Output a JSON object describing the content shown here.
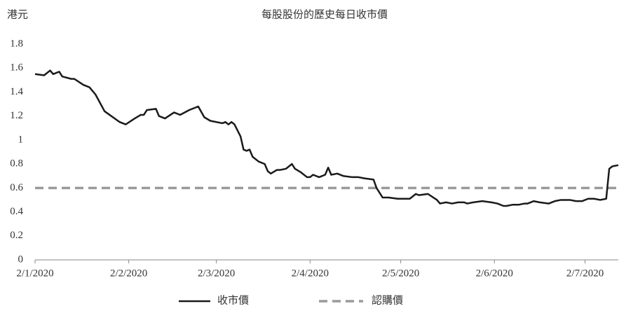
{
  "chart_data": {
    "type": "line",
    "title": "每股股份的歷史每日收市價",
    "y_label": "港元",
    "x": [
      "2020-01-02",
      "2020-01-05",
      "2020-01-07",
      "2020-01-08",
      "2020-01-10",
      "2020-01-11",
      "2020-01-14",
      "2020-01-15",
      "2020-01-18",
      "2020-01-20",
      "2020-01-22",
      "2020-01-25",
      "2020-01-30",
      "2020-01-31",
      "2020-02-01",
      "2020-02-04",
      "2020-02-06",
      "2020-02-07",
      "2020-02-08",
      "2020-02-11",
      "2020-02-12",
      "2020-02-14",
      "2020-02-17",
      "2020-02-19",
      "2020-02-22",
      "2020-02-25",
      "2020-02-27",
      "2020-02-29",
      "2020-03-04",
      "2020-03-05",
      "2020-03-06",
      "2020-03-07",
      "2020-03-08",
      "2020-03-10",
      "2020-03-11",
      "2020-03-12",
      "2020-03-13",
      "2020-03-14",
      "2020-03-16",
      "2020-03-18",
      "2020-03-19",
      "2020-03-20",
      "2020-03-22",
      "2020-03-23",
      "2020-03-25",
      "2020-03-27",
      "2020-03-28",
      "2020-03-30",
      "2020-04-01",
      "2020-04-02",
      "2020-04-03",
      "2020-04-05",
      "2020-04-07",
      "2020-04-08",
      "2020-04-09",
      "2020-04-11",
      "2020-04-13",
      "2020-04-16",
      "2020-04-18",
      "2020-04-20",
      "2020-04-23",
      "2020-04-24",
      "2020-04-26",
      "2020-04-28",
      "2020-05-01",
      "2020-05-05",
      "2020-05-07",
      "2020-05-08",
      "2020-05-11",
      "2020-05-14",
      "2020-05-15",
      "2020-05-17",
      "2020-05-19",
      "2020-05-21",
      "2020-05-23",
      "2020-05-24",
      "2020-05-26",
      "2020-05-29",
      "2020-06-01",
      "2020-06-03",
      "2020-06-05",
      "2020-06-06",
      "2020-06-08",
      "2020-06-10",
      "2020-06-12",
      "2020-06-13",
      "2020-06-15",
      "2020-06-17",
      "2020-06-20",
      "2020-06-22",
      "2020-06-24",
      "2020-06-27",
      "2020-06-29",
      "2020-07-01",
      "2020-07-03",
      "2020-07-05",
      "2020-07-07",
      "2020-07-09",
      "2020-07-10",
      "2020-07-11",
      "2020-07-13"
    ],
    "series": [
      {
        "name": "收市價",
        "color": "#1a1a1a",
        "values": [
          1.55,
          1.54,
          1.58,
          1.55,
          1.57,
          1.53,
          1.51,
          1.51,
          1.46,
          1.44,
          1.38,
          1.24,
          1.15,
          1.14,
          1.13,
          1.18,
          1.21,
          1.21,
          1.25,
          1.26,
          1.2,
          1.18,
          1.23,
          1.21,
          1.25,
          1.28,
          1.19,
          1.16,
          1.14,
          1.15,
          1.13,
          1.15,
          1.13,
          1.03,
          0.92,
          0.91,
          0.92,
          0.86,
          0.82,
          0.8,
          0.74,
          0.72,
          0.75,
          0.75,
          0.76,
          0.8,
          0.76,
          0.73,
          0.69,
          0.69,
          0.71,
          0.69,
          0.71,
          0.77,
          0.71,
          0.72,
          0.7,
          0.69,
          0.69,
          0.68,
          0.67,
          0.6,
          0.52,
          0.52,
          0.51,
          0.51,
          0.55,
          0.54,
          0.55,
          0.5,
          0.47,
          0.48,
          0.47,
          0.48,
          0.48,
          0.47,
          0.48,
          0.49,
          0.48,
          0.47,
          0.45,
          0.45,
          0.46,
          0.46,
          0.47,
          0.47,
          0.49,
          0.48,
          0.47,
          0.49,
          0.5,
          0.5,
          0.49,
          0.49,
          0.51,
          0.51,
          0.5,
          0.51,
          0.76,
          0.78,
          0.79
        ]
      }
    ],
    "reference_line": {
      "name": "認購價",
      "value": 0.6,
      "color": "#9a9a9a"
    },
    "xlim": [
      "2020-01-02",
      "2020-07-13"
    ],
    "xticks": [
      {
        "value": "2020-01-02",
        "label": "2/1/2020"
      },
      {
        "value": "2020-02-02",
        "label": "2/2/2020"
      },
      {
        "value": "2020-03-02",
        "label": "2/3/2020"
      },
      {
        "value": "2020-04-02",
        "label": "2/4/2020"
      },
      {
        "value": "2020-05-02",
        "label": "2/5/2020"
      },
      {
        "value": "2020-06-02",
        "label": "2/6/2020"
      },
      {
        "value": "2020-07-02",
        "label": "2/7/2020"
      }
    ],
    "ylim": [
      0,
      1.8
    ],
    "yticks": [
      0,
      0.2,
      0.4,
      0.6,
      0.8,
      1,
      1.2,
      1.4,
      1.6,
      1.8
    ],
    "grid": false,
    "legend": "bottom"
  }
}
